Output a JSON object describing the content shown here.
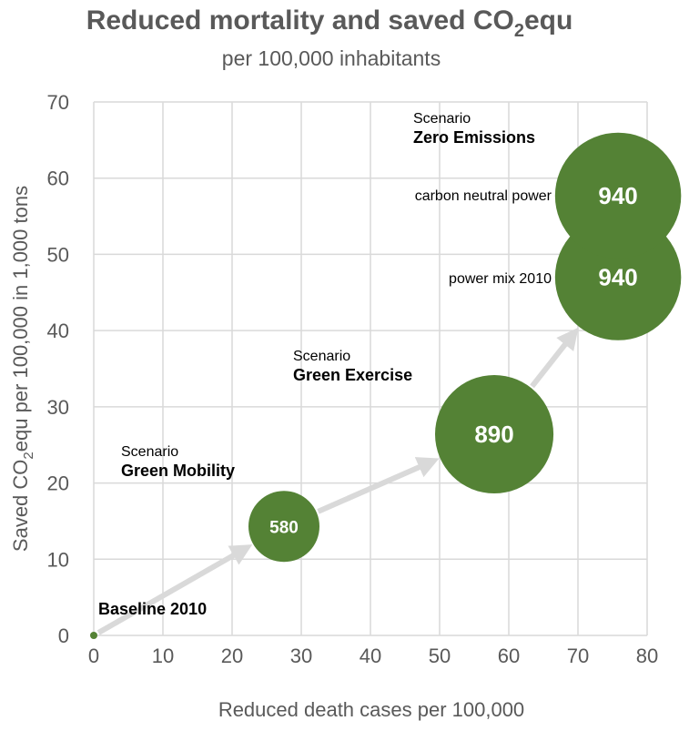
{
  "chart_data": {
    "type": "bubble",
    "title": {
      "main": "Reduced mortality and saved CO",
      "sub": "2",
      "end": "equ"
    },
    "subtitle": "per 100,000 inhabitants",
    "xlabel": "Reduced death cases per 100,000",
    "ylabel": {
      "main": "Saved CO",
      "sub": "2",
      "end": "equ per 100,000 in 1,000 tons"
    },
    "xlim": [
      0,
      80
    ],
    "ylim": [
      0,
      70
    ],
    "xticks": [
      "0",
      "10",
      "20",
      "30",
      "40",
      "50",
      "60",
      "70",
      "80"
    ],
    "yticks": [
      "0",
      "10",
      "20",
      "30",
      "40",
      "50",
      "60",
      "70"
    ],
    "grid": true,
    "color": "#548235",
    "points": [
      {
        "name": "Baseline 2010",
        "x": 0,
        "y": 0,
        "size": 0,
        "label": ""
      },
      {
        "name": "Green Mobility",
        "x": 27.5,
        "y": 14.3,
        "size": 580,
        "label": "580"
      },
      {
        "name": "Green Exercise",
        "x": 57.9,
        "y": 26.4,
        "size": 890,
        "label": "890"
      },
      {
        "name": "Zero Emissions - power mix 2010",
        "x": 75.8,
        "y": 47.0,
        "size": 940,
        "label": "940"
      },
      {
        "name": "Zero Emissions - carbon neutral power",
        "x": 75.8,
        "y": 57.7,
        "size": 940,
        "label": "940"
      }
    ],
    "annotations": {
      "baseline": "Baseline 2010",
      "scenario": "Scenario",
      "green_mobility": "Green Mobility",
      "green_exercise": "Green Exercise",
      "zero_emissions": "Zero Emissions",
      "carbon_neutral": "carbon neutral  power",
      "power_mix": "power mix 2010"
    }
  }
}
